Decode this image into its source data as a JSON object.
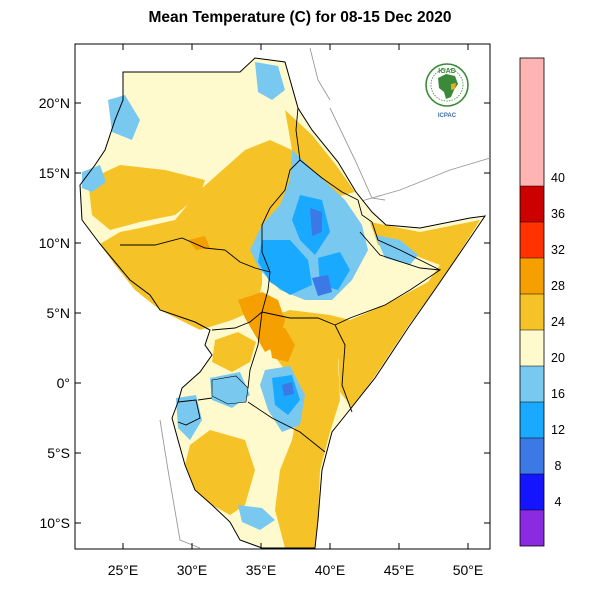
{
  "title": "Mean Temperature (C) for 08-15 Dec 2020",
  "logo": {
    "top_text": "IGAD",
    "bottom_text": "ICPAC"
  },
  "axes": {
    "lat_labels": [
      "20°N",
      "15°N",
      "10°N",
      "5°N",
      "0°",
      "5°S",
      "10°S"
    ],
    "lat_values": [
      20,
      15,
      10,
      5,
      0,
      -5,
      -10
    ],
    "lon_labels": [
      "25°E",
      "30°E",
      "35°E",
      "40°E",
      "45°E",
      "50°E"
    ],
    "lon_values": [
      25,
      30,
      35,
      40,
      45,
      50
    ]
  },
  "colorbar": {
    "labels": [
      "4",
      "8",
      "12",
      "16",
      "20",
      "24",
      "28",
      "32",
      "36",
      "40"
    ],
    "colors": [
      "#8a2be2",
      "#1414ff",
      "#3c78e6",
      "#19aaff",
      "#78c8f0",
      "#fffacd",
      "#f5c328",
      "#f5a000",
      "#ff3200",
      "#cd0000",
      "#ffb4b4"
    ]
  },
  "colors": {
    "sea": "#ffffff",
    "border": "#000000",
    "outside_border": "#999999"
  }
}
